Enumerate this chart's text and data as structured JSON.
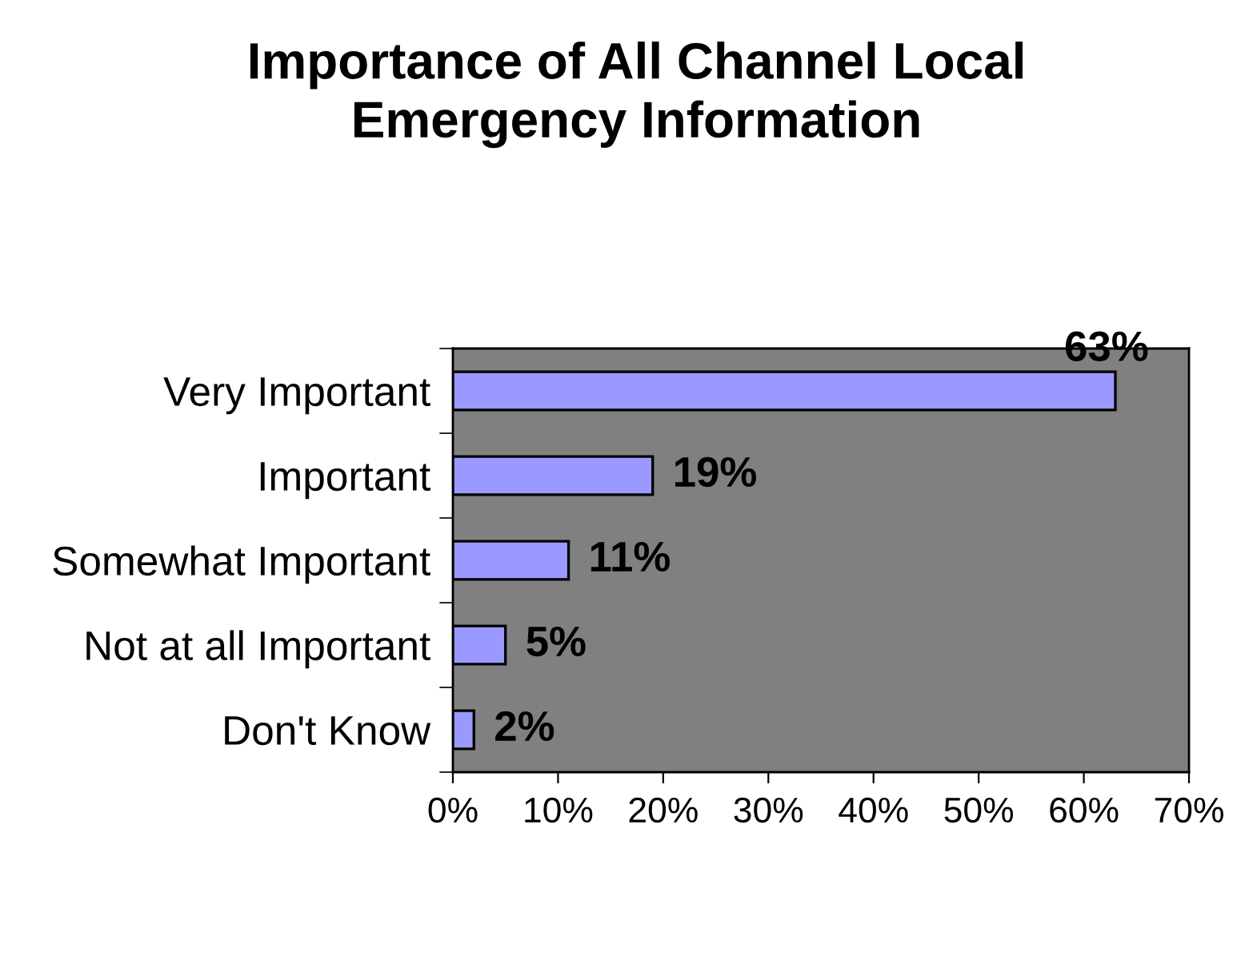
{
  "chart_data": {
    "type": "bar",
    "orientation": "horizontal",
    "title": "Importance of All Channel Local Emergency Information",
    "categories": [
      "Very Important",
      "Important",
      "Somewhat Important",
      "Not at all Important",
      "Don't Know"
    ],
    "values": [
      63,
      19,
      11,
      5,
      2
    ],
    "color": "#9999ff",
    "value_labels": [
      "63%",
      "19%",
      "11%",
      "5%",
      "2%"
    ],
    "xlim": [
      0,
      70
    ],
    "xticks": [
      {
        "value": 0,
        "label": "0%"
      },
      {
        "value": 10,
        "label": "10%"
      },
      {
        "value": 20,
        "label": "20%"
      },
      {
        "value": 30,
        "label": "30%"
      },
      {
        "value": 40,
        "label": "40%"
      },
      {
        "value": 50,
        "label": "50%"
      },
      {
        "value": 60,
        "label": "60%"
      },
      {
        "value": 70,
        "label": "70%"
      }
    ],
    "grid": false,
    "legend": false
  }
}
